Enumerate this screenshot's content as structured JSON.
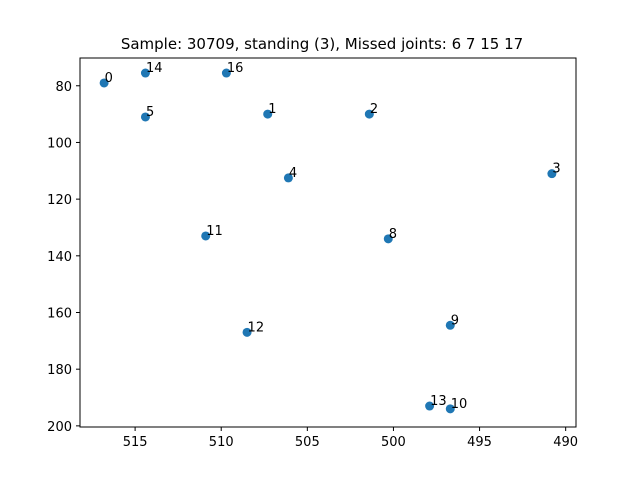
{
  "chart_data": {
    "type": "scatter",
    "title": "Sample: 30709, standing (3), Missed joints: 6  7  15  17",
    "xlabel": "",
    "ylabel": "",
    "xlim": [
      518.2,
      489.4
    ],
    "ylim": [
      200.4,
      70.2
    ],
    "x_inverted": true,
    "y_inverted": true,
    "xticks": [
      515,
      510,
      505,
      500,
      495,
      490
    ],
    "yticks": [
      80,
      100,
      120,
      140,
      160,
      180,
      200
    ],
    "grid": false,
    "marker_color": "#1f77b4",
    "points": [
      {
        "label": "0",
        "x": 516.8,
        "y": 79.0
      },
      {
        "label": "14",
        "x": 514.4,
        "y": 75.5
      },
      {
        "label": "16",
        "x": 509.7,
        "y": 75.5
      },
      {
        "label": "5",
        "x": 514.4,
        "y": 91.0
      },
      {
        "label": "1",
        "x": 507.3,
        "y": 90.0
      },
      {
        "label": "2",
        "x": 501.4,
        "y": 90.0
      },
      {
        "label": "3",
        "x": 490.8,
        "y": 111.0
      },
      {
        "label": "4",
        "x": 506.1,
        "y": 112.5
      },
      {
        "label": "11",
        "x": 510.9,
        "y": 133.0
      },
      {
        "label": "8",
        "x": 500.3,
        "y": 134.0
      },
      {
        "label": "12",
        "x": 508.5,
        "y": 167.0
      },
      {
        "label": "9",
        "x": 496.7,
        "y": 164.5
      },
      {
        "label": "13",
        "x": 497.9,
        "y": 193.0
      },
      {
        "label": "10",
        "x": 496.7,
        "y": 194.0
      }
    ]
  }
}
